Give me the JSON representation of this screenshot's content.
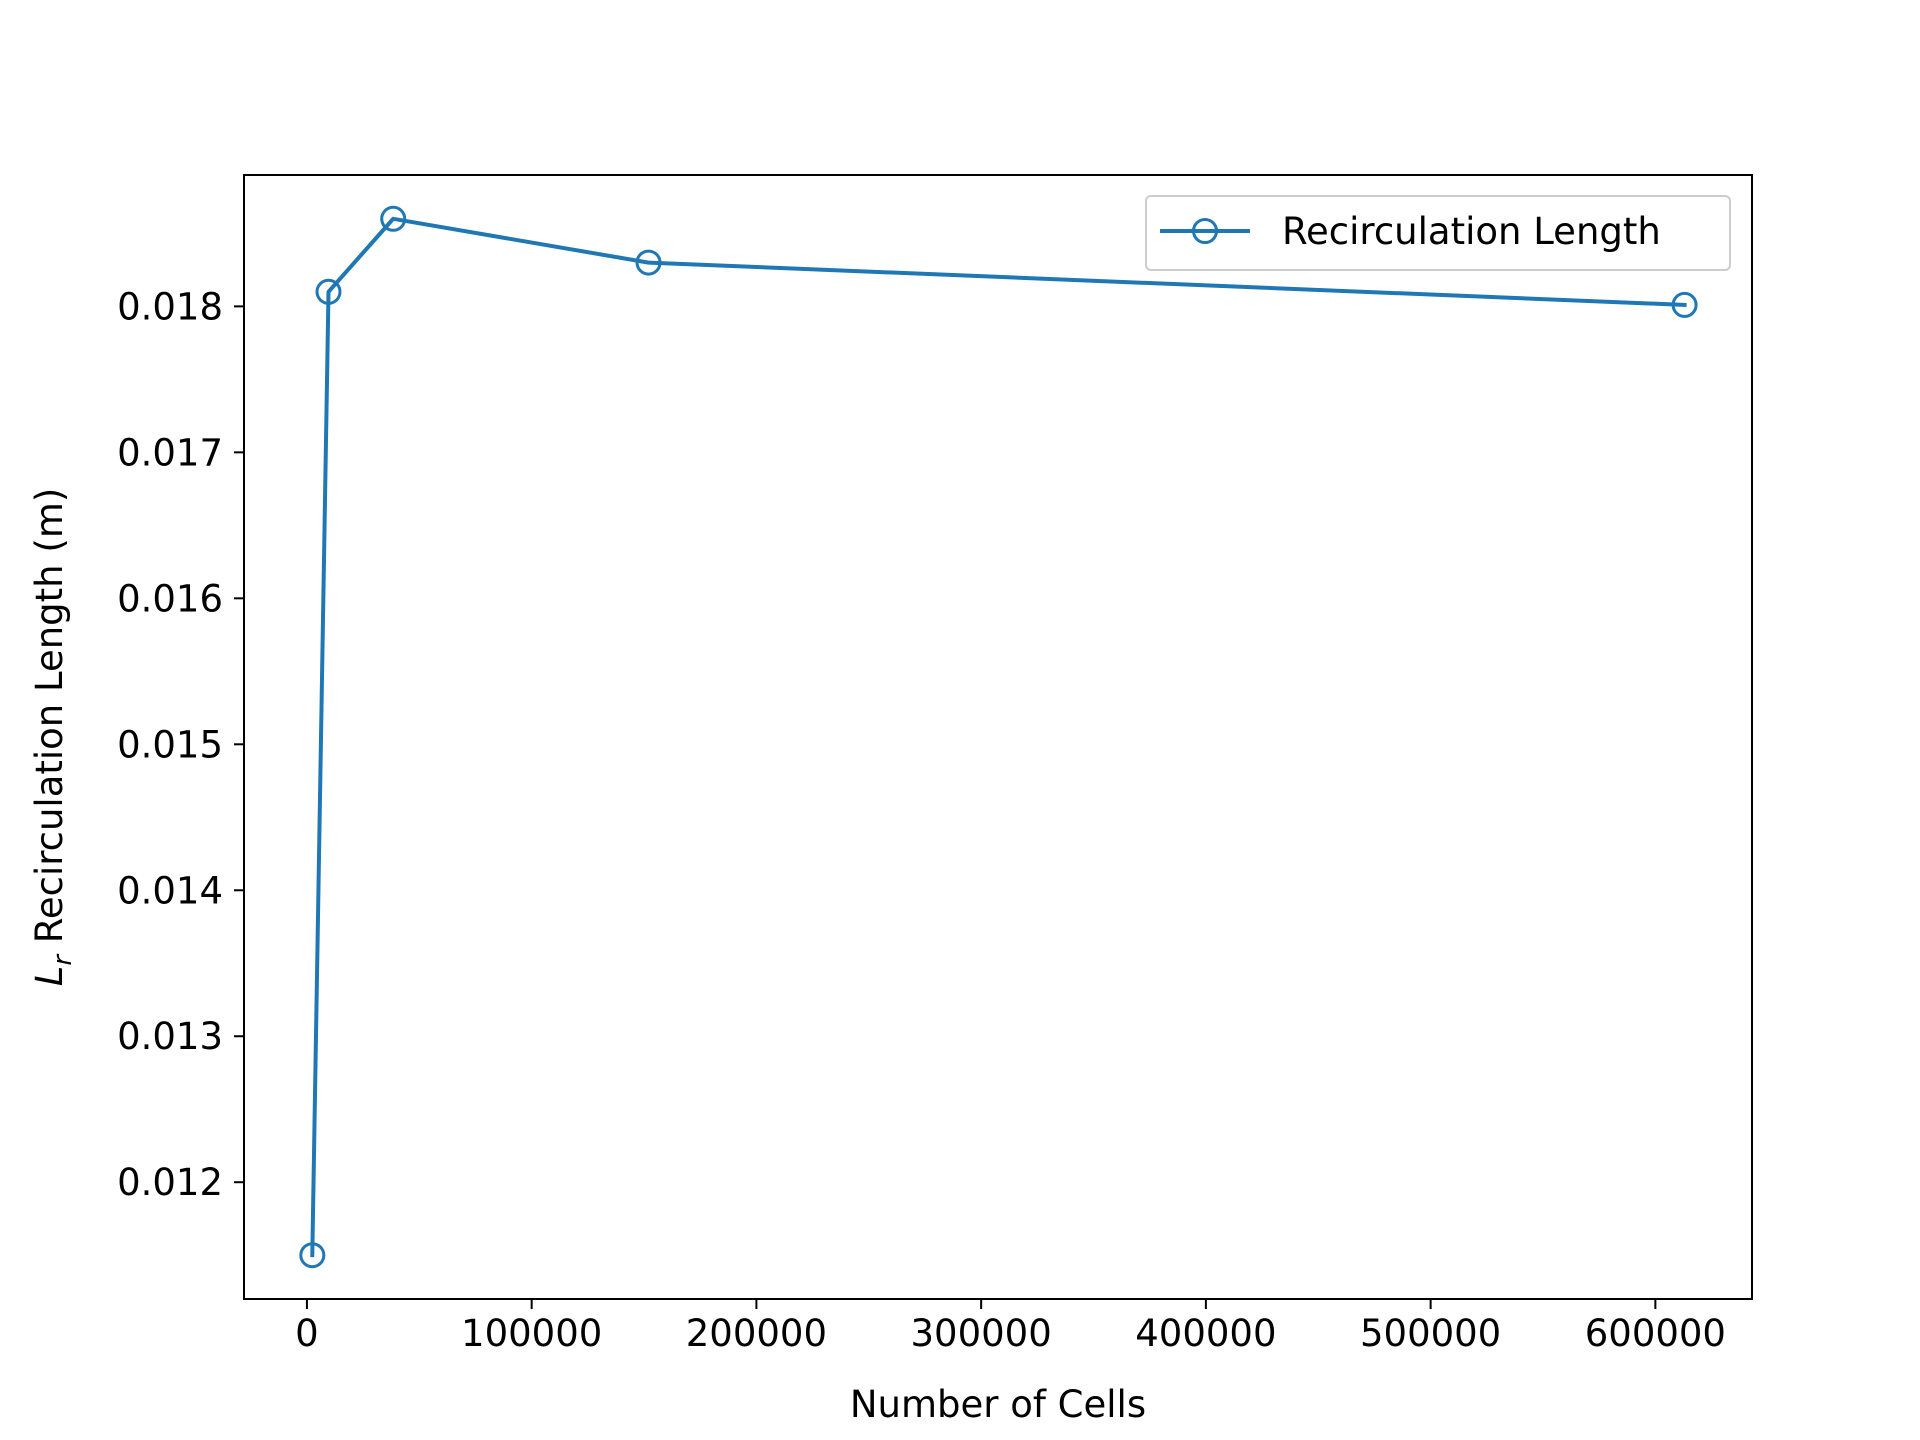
{
  "chart_data": {
    "type": "line",
    "title": "",
    "xlabel": "Number of Cells",
    "ylabel_symbol": "L",
    "ylabel_subscript": "r",
    "ylabel_text": " Recirculation Length (m)",
    "xlim": [
      -28000,
      643000
    ],
    "ylim": [
      0.0112,
      0.0189
    ],
    "xticks": [
      0,
      100000,
      200000,
      300000,
      400000,
      500000,
      600000
    ],
    "xtick_labels": [
      "0",
      "100000",
      "200000",
      "300000",
      "400000",
      "500000",
      "600000"
    ],
    "yticks": [
      0.012,
      0.013,
      0.014,
      0.015,
      0.016,
      0.017,
      0.018
    ],
    "ytick_labels": [
      "0.012",
      "0.013",
      "0.014",
      "0.015",
      "0.016",
      "0.017",
      "0.018"
    ],
    "grid": false,
    "legend_position": "top-right",
    "series": [
      {
        "name": "Recirculation Length",
        "color": "#1f77b4",
        "marker": "open-circle",
        "x": [
          2400,
          9600,
          38400,
          152000,
          613000
        ],
        "y": [
          0.0115,
          0.0181,
          0.0186,
          0.0183,
          0.01801
        ]
      }
    ]
  }
}
